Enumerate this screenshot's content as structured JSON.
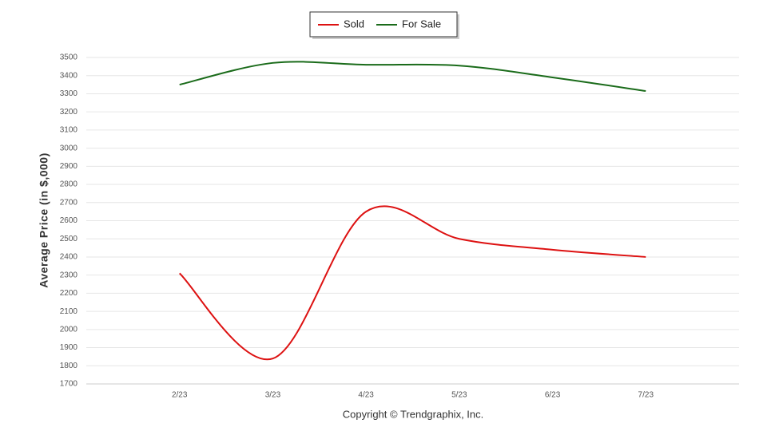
{
  "chart_data": {
    "type": "line",
    "y_label": "Average Price (in $,000)",
    "footer": "Copyright © Trendgraphix, Inc.",
    "categories": [
      "2/23",
      "3/23",
      "4/23",
      "5/23",
      "6/23",
      "7/23"
    ],
    "series": [
      {
        "name": "Sold",
        "color": "#dd1111",
        "values": [
          2310,
          1840,
          2650,
          2500,
          2440,
          2400
        ]
      },
      {
        "name": "For Sale",
        "color": "#1a6b1a",
        "values": [
          3350,
          3470,
          3460,
          3455,
          3390,
          3315
        ]
      }
    ],
    "ylim": [
      1700,
      3500
    ],
    "yticks": [
      1700,
      1800,
      1900,
      2000,
      2100,
      2200,
      2300,
      2400,
      2500,
      2600,
      2700,
      2800,
      2900,
      3000,
      3100,
      3200,
      3300,
      3400,
      3500
    ],
    "grid": true,
    "smooth": true,
    "legend": "top"
  }
}
